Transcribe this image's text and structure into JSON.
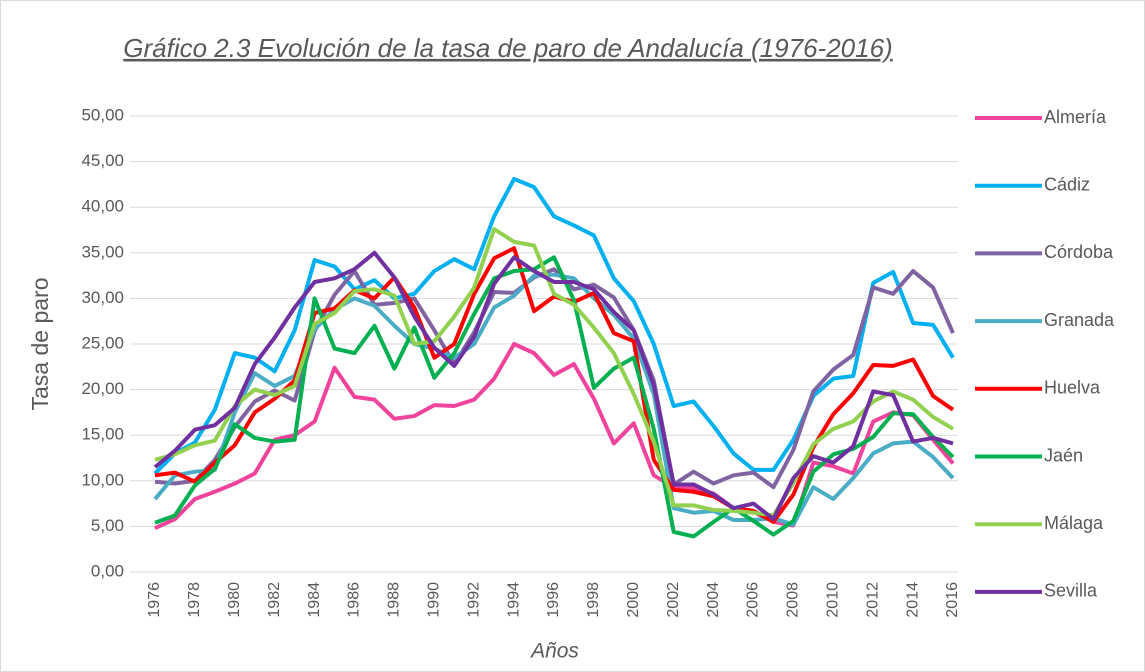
{
  "chart_data": {
    "type": "line",
    "title": "Gráfico 2.3 Evolución de la tasa de paro de Andalucía (1976-2016)",
    "x_label": "Años",
    "y_label": "Tasa de paro",
    "x": [
      1976,
      1977,
      1978,
      1979,
      1980,
      1981,
      1982,
      1983,
      1984,
      1985,
      1986,
      1987,
      1988,
      1989,
      1990,
      1991,
      1992,
      1993,
      1994,
      1995,
      1996,
      1997,
      1998,
      1999,
      2000,
      2001,
      2002,
      2003,
      2004,
      2005,
      2006,
      2007,
      2008,
      2009,
      2010,
      2011,
      2012,
      2013,
      2014,
      2015,
      2016
    ],
    "xlim": [
      1976,
      2016
    ],
    "xticks": [
      1976,
      1978,
      1980,
      1982,
      1984,
      1986,
      1988,
      1990,
      1992,
      1994,
      1996,
      1998,
      2000,
      2002,
      2004,
      2006,
      2008,
      2010,
      2012,
      2014,
      2016
    ],
    "ylim": [
      0,
      50
    ],
    "yticks": [
      {
        "value": 0,
        "label": "0,00"
      },
      {
        "value": 5,
        "label": "5,00"
      },
      {
        "value": 10,
        "label": "10,00"
      },
      {
        "value": 15,
        "label": "15,00"
      },
      {
        "value": 20,
        "label": "20,00"
      },
      {
        "value": 25,
        "label": "25,00"
      },
      {
        "value": 30,
        "label": "30,00"
      },
      {
        "value": 35,
        "label": "35,00"
      },
      {
        "value": 40,
        "label": "40,00"
      },
      {
        "value": 45,
        "label": "45,00"
      },
      {
        "value": 50,
        "label": "50,00"
      }
    ],
    "grid": true,
    "legend": "right",
    "series": [
      {
        "name": "Almería",
        "color": "#f0449c",
        "values": [
          4.8,
          5.8,
          8,
          8.8,
          9.7,
          10.8,
          14.5,
          15,
          16.5,
          22.4,
          19.2,
          18.9,
          16.8,
          17.1,
          18.3,
          18.2,
          18.9,
          21.2,
          25,
          24,
          21.6,
          22.8,
          19,
          14.1,
          16.3,
          10.6,
          9.3,
          9.2,
          8.6,
          7,
          6.6,
          5.5,
          5.1,
          12,
          11.6,
          10.8,
          16.5,
          17.5,
          17.2,
          14.5,
          11.9
        ]
      },
      {
        "name": "Cádiz",
        "color": "#00b0f0",
        "values": [
          10.8,
          13,
          14.2,
          17.8,
          24,
          23.5,
          22,
          26.5,
          34.2,
          33.5,
          31,
          32,
          30,
          30.5,
          33,
          34.3,
          33.2,
          39,
          43.1,
          42.2,
          39,
          38,
          36.9,
          32.2,
          29.7,
          25,
          18.2,
          18.7,
          16,
          13,
          11.2,
          11.2,
          14.5,
          19.3,
          21.2,
          21.5,
          31.7,
          32.9,
          27.3,
          27.1,
          23.5
        ]
      },
      {
        "name": "Córdoba",
        "color": "#8064a2",
        "values": [
          9.9,
          9.7,
          10,
          12.3,
          15.9,
          18.7,
          19.9,
          18.8,
          26.4,
          30.4,
          33,
          29.3,
          29.5,
          30,
          26.5,
          22.8,
          26.3,
          30.7,
          30.6,
          32.3,
          33.2,
          31,
          31.5,
          30.1,
          26.5,
          21,
          9.6,
          11,
          9.7,
          10.6,
          10.9,
          9.3,
          13.4,
          19.8,
          22.2,
          23.8,
          31.2,
          30.5,
          33,
          31.2,
          26.2
        ]
      },
      {
        "name": "Granada",
        "color": "#4bacc6",
        "values": [
          8,
          10.6,
          11,
          11.2,
          17.5,
          21.8,
          20.4,
          21.5,
          26.6,
          28.8,
          30,
          29.2,
          27,
          25,
          24.5,
          23.5,
          25,
          29,
          30.3,
          32.5,
          32.6,
          32.2,
          30,
          28.2,
          25.6,
          19.5,
          7,
          6.5,
          6.7,
          5.7,
          5.7,
          5.9,
          5.2,
          9.3,
          8,
          10.3,
          13,
          14.1,
          14.3,
          12.6,
          10.3
        ]
      },
      {
        "name": "Huelva",
        "color": "#ff0000",
        "values": [
          10.6,
          10.9,
          9.9,
          12,
          13.9,
          17.5,
          19,
          21,
          28.4,
          28.9,
          30.9,
          30,
          32.3,
          29,
          23.5,
          25,
          30.5,
          34.4,
          35.5,
          28.6,
          30.2,
          29.6,
          30.6,
          26.2,
          25.3,
          12.3,
          9,
          8.8,
          8.3,
          7,
          6.7,
          5.5,
          8.5,
          13.7,
          17.3,
          19.6,
          22.7,
          22.6,
          23.3,
          19.3,
          17.8
        ]
      },
      {
        "name": "Jaén",
        "color": "#00b050",
        "values": [
          5.4,
          6.2,
          9.5,
          11.3,
          16.2,
          14.7,
          14.3,
          14.5,
          30,
          24.5,
          24,
          27,
          22.3,
          26.8,
          21.3,
          24,
          28.3,
          32.2,
          33,
          33.2,
          34.5,
          29.8,
          20.2,
          22.3,
          23.5,
          15.7,
          4.4,
          3.9,
          5.5,
          7,
          5.6,
          4.1,
          5.6,
          11,
          12.9,
          13.5,
          14.8,
          17.4,
          17.3,
          14.8,
          12.6
        ]
      },
      {
        "name": "Málaga",
        "color": "#92d050",
        "values": [
          12.3,
          12.9,
          13.9,
          14.4,
          18.2,
          20,
          19.4,
          20.4,
          27.2,
          28.4,
          30.8,
          31,
          30.3,
          25,
          25.3,
          28,
          31.2,
          37.6,
          36.2,
          35.8,
          30.5,
          29.3,
          26.8,
          24,
          19.5,
          14.3,
          7.3,
          7.3,
          6.8,
          6.7,
          6.5,
          6.2,
          9.8,
          14,
          15.7,
          16.5,
          18.7,
          19.8,
          18.9,
          17,
          15.7
        ]
      },
      {
        "name": "Sevilla",
        "color": "#7030a0",
        "values": [
          11.5,
          13.3,
          15.6,
          16.1,
          18,
          22.8,
          25.7,
          29,
          31.8,
          32.2,
          33.2,
          35,
          32.3,
          28,
          24.6,
          22.6,
          25.8,
          31.6,
          34.5,
          33,
          31.8,
          31.8,
          31,
          28.5,
          26.5,
          20.5,
          9.6,
          9.6,
          8.5,
          7,
          7.5,
          5.8,
          10.3,
          12.7,
          12,
          13.8,
          19.8,
          19.4,
          14.3,
          14.7,
          14.1
        ]
      }
    ]
  }
}
